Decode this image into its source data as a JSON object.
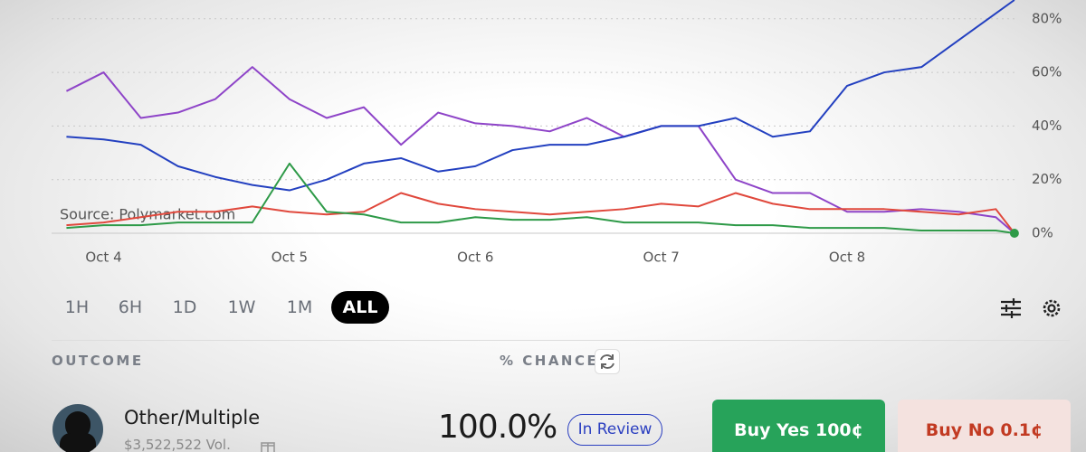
{
  "chart_data": {
    "type": "line",
    "annotation": "Source: Polymarket.com",
    "x": [
      3.8,
      4.0,
      4.2,
      4.4,
      4.6,
      4.8,
      5.0,
      5.2,
      5.4,
      5.6,
      5.8,
      6.0,
      6.2,
      6.4,
      6.6,
      6.8,
      7.0,
      7.2,
      7.4,
      7.6,
      7.8,
      8.0,
      8.2,
      8.4,
      8.6,
      8.8,
      8.9
    ],
    "series": [
      {
        "color": "#8e44c8",
        "values": [
          53,
          60,
          43,
          45,
          50,
          62,
          50,
          43,
          47,
          33,
          45,
          41,
          40,
          38,
          43,
          36,
          40,
          40,
          20,
          15,
          15,
          8,
          8,
          9,
          8,
          6,
          0
        ]
      },
      {
        "color": "#2340c0",
        "values": [
          36,
          35,
          33,
          25,
          21,
          18,
          16,
          20,
          26,
          28,
          23,
          25,
          31,
          33,
          33,
          36,
          40,
          40,
          43,
          36,
          38,
          55,
          60,
          62,
          72,
          82,
          87
        ]
      },
      {
        "color": "#e0483c",
        "values": [
          3,
          4,
          6,
          8,
          8,
          10,
          8,
          7,
          8,
          15,
          11,
          9,
          8,
          7,
          8,
          9,
          11,
          10,
          15,
          11,
          9,
          9,
          9,
          8,
          7,
          9,
          0
        ]
      },
      {
        "color": "#2e9a48",
        "values": [
          2,
          3,
          3,
          4,
          4,
          4,
          26,
          8,
          7,
          4,
          4,
          6,
          5,
          5,
          6,
          4,
          4,
          4,
          3,
          3,
          2,
          2,
          2,
          1,
          1,
          1,
          0
        ]
      }
    ],
    "xlim": [
      3.72,
      8.92
    ],
    "xticks": [
      {
        "value": 4,
        "label": "Oct 4"
      },
      {
        "value": 5,
        "label": "Oct 5"
      },
      {
        "value": 6,
        "label": "Oct 6"
      },
      {
        "value": 7,
        "label": "Oct 7"
      },
      {
        "value": 8,
        "label": "Oct 8"
      }
    ],
    "ylim": [
      0,
      87
    ],
    "yticks": [
      {
        "value": 0,
        "label": "0%"
      },
      {
        "value": 20,
        "label": "20%"
      },
      {
        "value": 40,
        "label": "40%"
      },
      {
        "value": 60,
        "label": "60%"
      },
      {
        "value": 80,
        "label": "80%"
      }
    ],
    "grid": true
  },
  "time_ranges": {
    "options": [
      "1H",
      "6H",
      "1D",
      "1W",
      "1M",
      "ALL"
    ],
    "selected": 5
  },
  "outcomes_header": {
    "outcome": "OUTCOME",
    "chance": "% CHANCE"
  },
  "outcomes": [
    {
      "name": "Other/Multiple",
      "volume": "$3,522,522 Vol.",
      "chance": "100.0%",
      "status": "In Review",
      "buy_yes": "Buy Yes 100¢",
      "buy_no": "Buy No 0.1¢"
    }
  ]
}
